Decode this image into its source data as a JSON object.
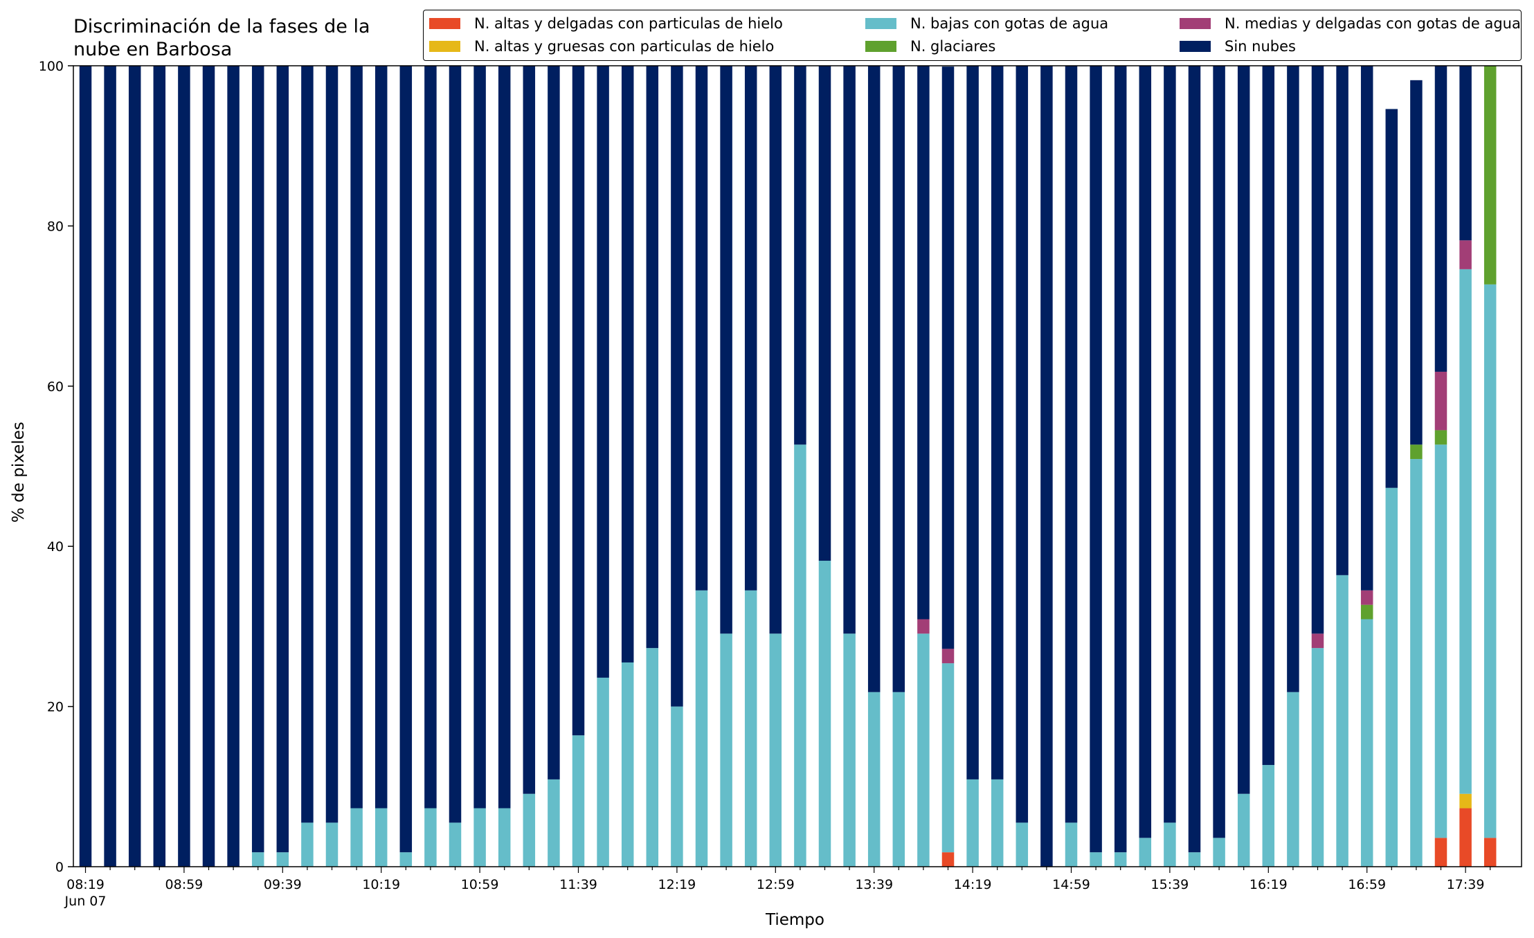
{
  "title_line1": "Discriminación de la fases de la",
  "title_line2": "nube en Barbosa",
  "chart_data": {
    "type": "bar",
    "stacked": true,
    "title": "Discriminación de la fases de la nube en Barbosa",
    "xlabel": "Tiempo",
    "ylabel": "% de pixeles",
    "ylim": [
      0,
      100
    ],
    "yticks": [
      0,
      20,
      40,
      60,
      80,
      100
    ],
    "grid": false,
    "legend_position": "top-right",
    "x_ticklabels": [
      {
        "index": 0,
        "label": "08:19",
        "sublabel": "Jun 07"
      },
      {
        "index": 4,
        "label": "08:59"
      },
      {
        "index": 8,
        "label": "09:39"
      },
      {
        "index": 12,
        "label": "10:19"
      },
      {
        "index": 16,
        "label": "10:59"
      },
      {
        "index": 20,
        "label": "11:39"
      },
      {
        "index": 24,
        "label": "12:19"
      },
      {
        "index": 28,
        "label": "12:59"
      },
      {
        "index": 32,
        "label": "13:39"
      },
      {
        "index": 36,
        "label": "14:19"
      },
      {
        "index": 40,
        "label": "14:59"
      },
      {
        "index": 44,
        "label": "15:39"
      },
      {
        "index": 48,
        "label": "16:19"
      },
      {
        "index": 52,
        "label": "16:59"
      },
      {
        "index": 56,
        "label": "17:39"
      }
    ],
    "x": [
      "08:19",
      "08:29",
      "08:39",
      "08:49",
      "08:59",
      "09:09",
      "09:19",
      "09:29",
      "09:39",
      "09:49",
      "09:59",
      "10:09",
      "10:19",
      "10:29",
      "10:39",
      "10:49",
      "10:59",
      "11:09",
      "11:19",
      "11:29",
      "11:39",
      "11:49",
      "11:59",
      "12:09",
      "12:19",
      "12:29",
      "12:39",
      "12:49",
      "12:59",
      "13:09",
      "13:19",
      "13:29",
      "13:39",
      "13:49",
      "13:59",
      "14:09",
      "14:19",
      "14:29",
      "14:39",
      "14:49",
      "14:59",
      "15:09",
      "15:19",
      "15:29",
      "15:39",
      "15:49",
      "15:59",
      "16:09",
      "16:19",
      "16:29",
      "16:39",
      "16:49",
      "16:59",
      "17:09",
      "17:19",
      "17:29",
      "17:39",
      "17:49"
    ],
    "series": [
      {
        "name": "N. altas y delgadas con particulas de hielo",
        "color": "#e84a27",
        "values": [
          0,
          0,
          0,
          0,
          0,
          0,
          0,
          0,
          0,
          0,
          0,
          0,
          0,
          0,
          0,
          0,
          0,
          0,
          0,
          0,
          0,
          0,
          0,
          0,
          0,
          0,
          0,
          0,
          0,
          0,
          0,
          0,
          0,
          0,
          0,
          1.8,
          0,
          0,
          0,
          0,
          0,
          0,
          0,
          0,
          0,
          0,
          0,
          0,
          0,
          0,
          0,
          0,
          0,
          0,
          0,
          3.6,
          7.3,
          3.6
        ]
      },
      {
        "name": "N. altas y gruesas con particulas de hielo",
        "color": "#e6b818",
        "values": [
          0,
          0,
          0,
          0,
          0,
          0,
          0,
          0,
          0,
          0,
          0,
          0,
          0,
          0,
          0,
          0,
          0,
          0,
          0,
          0,
          0,
          0,
          0,
          0,
          0,
          0,
          0,
          0,
          0,
          0,
          0,
          0,
          0,
          0,
          0,
          0,
          0,
          0,
          0,
          0,
          0,
          0,
          0,
          0,
          0,
          0,
          0,
          0,
          0,
          0,
          0,
          0,
          0,
          0,
          0,
          0,
          1.8,
          0
        ]
      },
      {
        "name": "N. bajas con gotas de agua",
        "color": "#65bdc9",
        "values": [
          0,
          0,
          0,
          0,
          0,
          0,
          0,
          1.8,
          1.8,
          5.5,
          5.5,
          7.3,
          7.3,
          1.8,
          7.3,
          5.5,
          7.3,
          7.3,
          9.1,
          10.9,
          16.4,
          23.6,
          25.5,
          27.3,
          20.0,
          34.5,
          29.1,
          34.5,
          29.1,
          52.7,
          38.2,
          29.1,
          21.8,
          21.8,
          29.1,
          23.6,
          10.9,
          10.9,
          5.5,
          0,
          5.5,
          1.8,
          1.8,
          3.6,
          5.5,
          1.8,
          3.6,
          9.1,
          12.7,
          21.8,
          27.3,
          36.4,
          30.9,
          47.3,
          50.9,
          49.1,
          65.5,
          69.1
        ]
      },
      {
        "name": "N. glaciares",
        "color": "#5fa12e",
        "values": [
          0,
          0,
          0,
          0,
          0,
          0,
          0,
          0,
          0,
          0,
          0,
          0,
          0,
          0,
          0,
          0,
          0,
          0,
          0,
          0,
          0,
          0,
          0,
          0,
          0,
          0,
          0,
          0,
          0,
          0,
          0,
          0,
          0,
          0,
          0,
          0,
          0,
          0,
          0,
          0,
          0,
          0,
          0,
          0,
          0,
          0,
          0,
          0,
          0,
          0,
          0,
          0,
          1.8,
          0,
          1.8,
          1.8,
          0,
          27.3
        ]
      },
      {
        "name": "N. medias y delgadas con gotas de agua",
        "color": "#a23e76",
        "values": [
          0,
          0,
          0,
          0,
          0,
          0,
          0,
          0,
          0,
          0,
          0,
          0,
          0,
          0,
          0,
          0,
          0,
          0,
          0,
          0,
          0,
          0,
          0,
          0,
          0,
          0,
          0,
          0,
          0,
          0,
          0,
          0,
          0,
          0,
          1.8,
          1.8,
          0,
          0,
          0,
          0,
          0,
          0,
          0,
          0,
          0,
          0,
          0,
          0,
          0,
          0,
          1.8,
          0,
          1.8,
          0,
          0,
          7.3,
          3.6,
          0
        ]
      },
      {
        "name": "Sin nubes",
        "color": "#001f60",
        "values": [
          100,
          100,
          100,
          100,
          100,
          100,
          100,
          98.2,
          98.2,
          94.5,
          94.5,
          92.7,
          92.7,
          98.2,
          92.7,
          94.5,
          92.7,
          92.7,
          90.9,
          89.1,
          83.6,
          76.4,
          74.5,
          72.7,
          80.0,
          65.5,
          70.9,
          65.5,
          70.9,
          47.3,
          61.8,
          70.9,
          78.2,
          78.2,
          69.1,
          72.7,
          89.1,
          89.1,
          94.5,
          100,
          94.5,
          98.2,
          98.2,
          96.4,
          94.5,
          98.2,
          96.4,
          90.9,
          87.3,
          78.2,
          70.9,
          63.6,
          65.5,
          47.3,
          45.5,
          38.2,
          21.8,
          0
        ]
      }
    ]
  }
}
